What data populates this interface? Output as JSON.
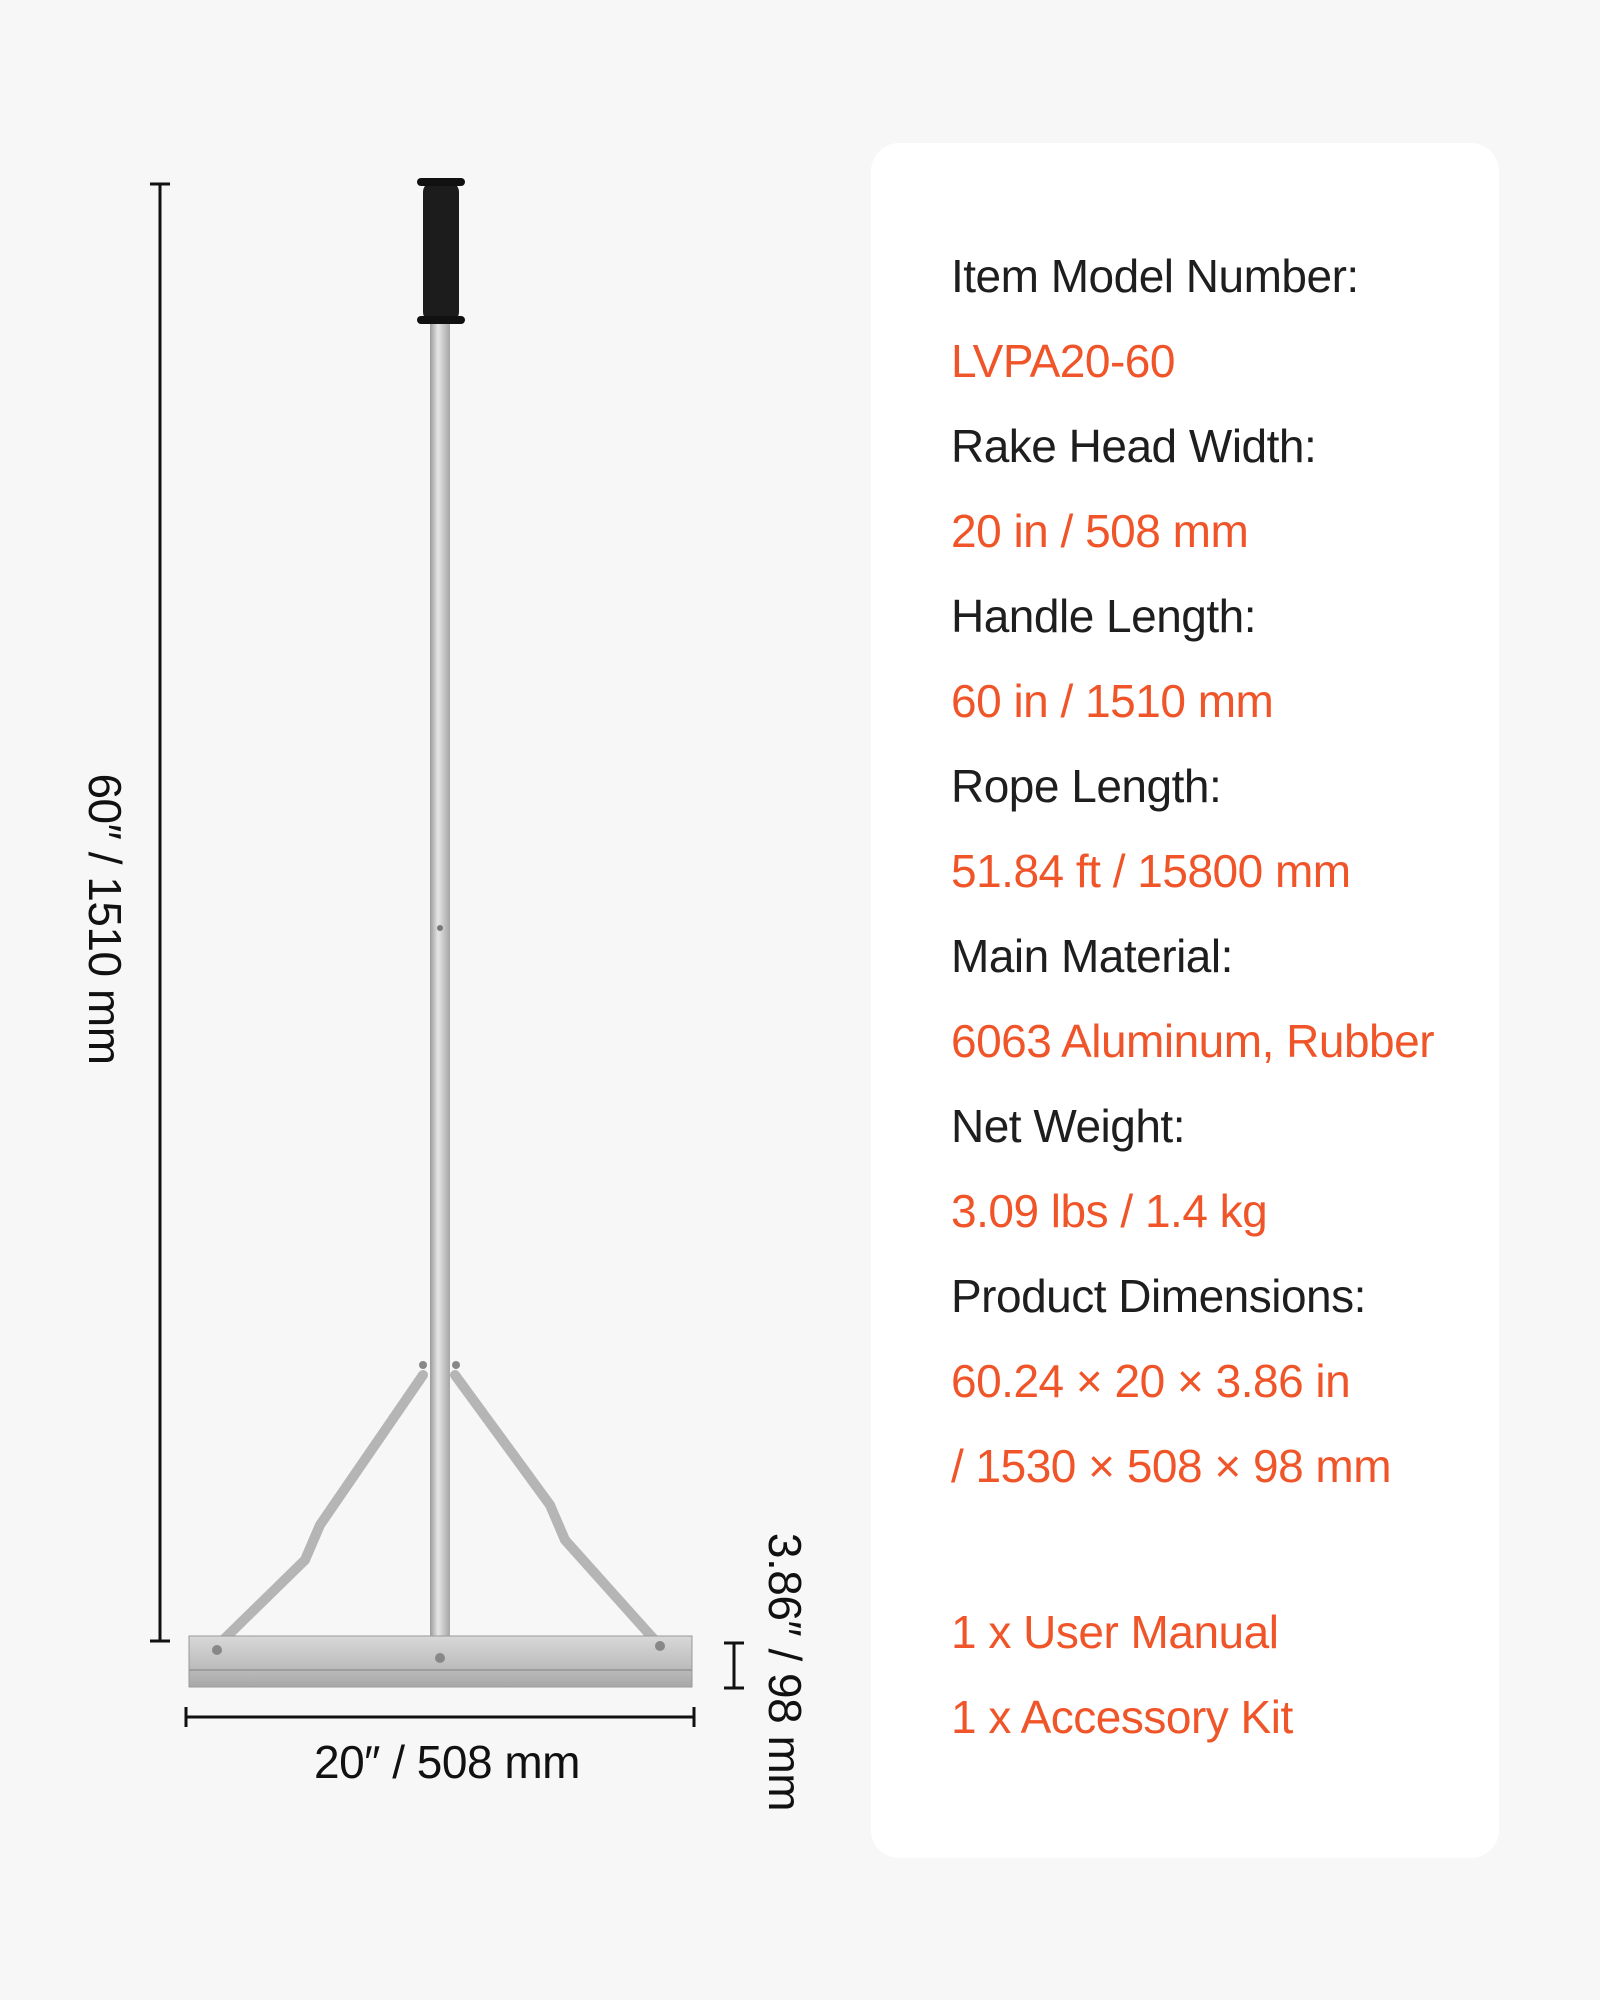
{
  "colors": {
    "accent": "#f0552a",
    "label": "#1e1e1e",
    "background": "#f7f7f7",
    "card": "#ffffff"
  },
  "dimensions": {
    "height_label": "60″ / 1510 mm",
    "width_label": "20″ / 508 mm",
    "depth_label": "3.86″ / 98 mm"
  },
  "specs": [
    {
      "label": "Item Model Number:",
      "value": "LVPA20-60"
    },
    {
      "label": "Rake Head Width:",
      "value": "20 in / 508 mm"
    },
    {
      "label": "Handle Length:",
      "value": "60 in / 1510 mm"
    },
    {
      "label": "Rope Length:",
      "value": "51.84 ft / 15800 mm"
    },
    {
      "label": "Main Material:",
      "value": "6063 Aluminum, Rubber"
    },
    {
      "label": "Net Weight:",
      "value": "3.09 lbs / 1.4 kg"
    },
    {
      "label": "Product Dimensions:",
      "value": "60.24 × 20 × 3.86 in",
      "value2": "/ 1530 × 508 × 98 mm"
    }
  ],
  "package": [
    "1 x User Manual",
    "1 x Accessory Kit"
  ]
}
